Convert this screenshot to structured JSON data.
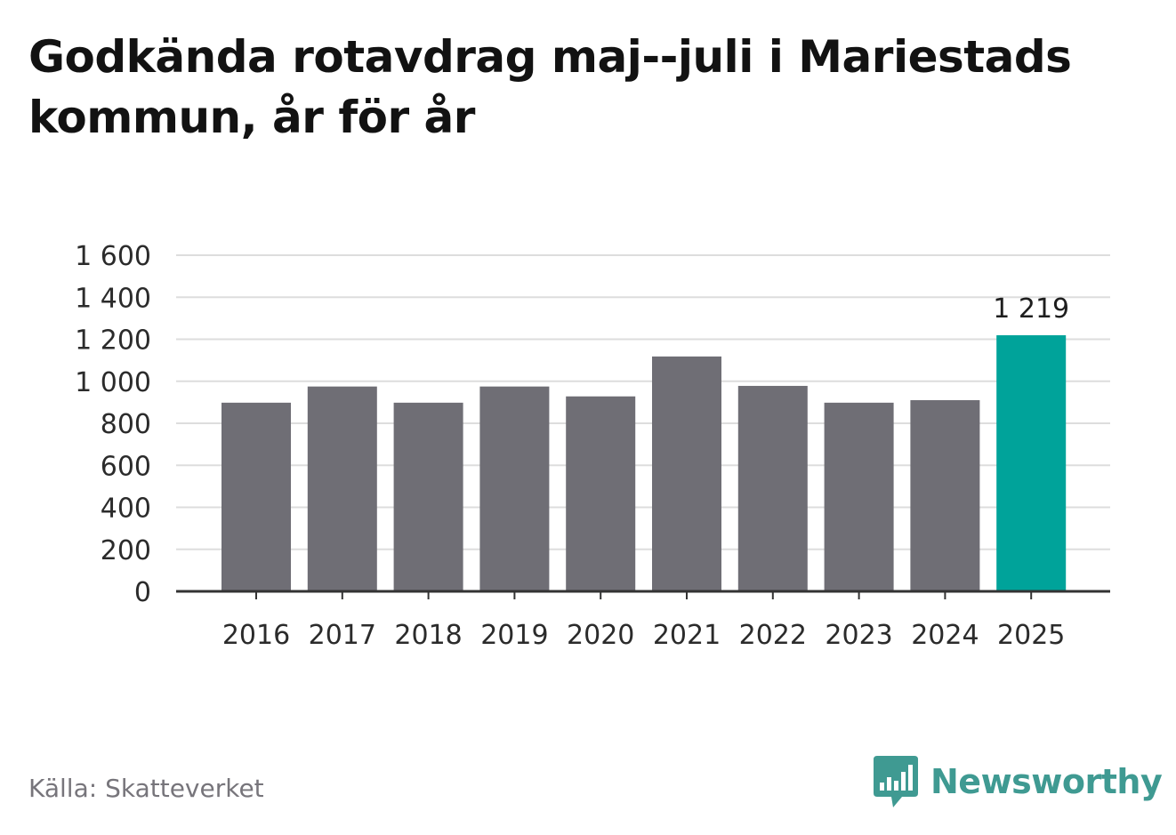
{
  "title": "Godkända rotavdrag maj--juli i Mariestads kommun, år för år",
  "source": "Källa: Skatteverket",
  "brand": {
    "name": "Newsworthy",
    "icon": "bar-chart-speech-bubble-icon",
    "color": "#3f9a92"
  },
  "colors": {
    "bar": "#6f6e75",
    "highlight": "#00a39a",
    "grid": "#dddddd",
    "axis": "#333333",
    "text": "#2b2b2b"
  },
  "chart_data": {
    "type": "bar",
    "categories": [
      "2016",
      "2017",
      "2018",
      "2019",
      "2020",
      "2021",
      "2022",
      "2023",
      "2024",
      "2025"
    ],
    "values": [
      898,
      975,
      898,
      975,
      928,
      1118,
      978,
      898,
      910,
      1219
    ],
    "highlight_index": 9,
    "data_labels": [
      {
        "index": 9,
        "text": "1 219"
      }
    ],
    "ylim": [
      0,
      1600
    ],
    "yticks": [
      0,
      200,
      400,
      600,
      800,
      1000,
      1200,
      1400,
      1600
    ],
    "ytick_labels": [
      "0",
      "200",
      "400",
      "600",
      "800",
      "1 000",
      "1 200",
      "1 400",
      "1 600"
    ],
    "grid": true,
    "legend": "none",
    "xlabel": "",
    "ylabel": ""
  }
}
